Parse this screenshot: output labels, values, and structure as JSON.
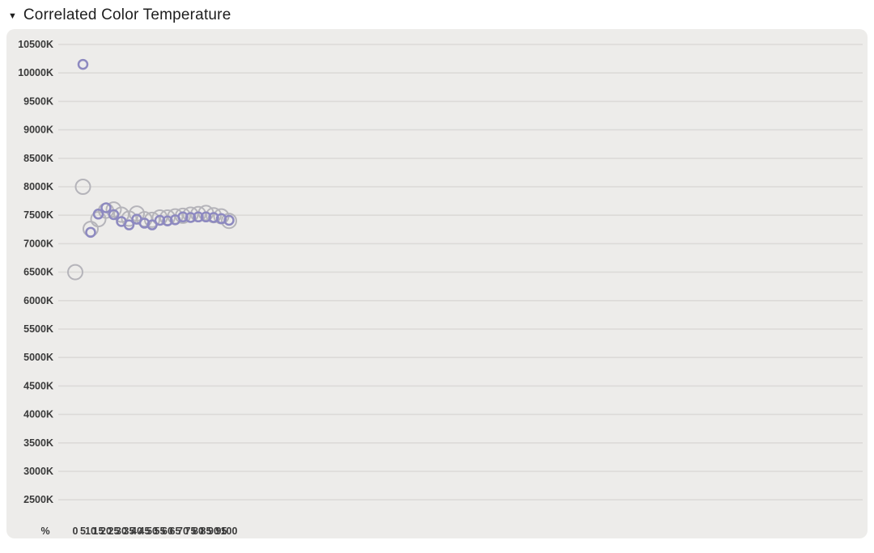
{
  "header": {
    "collapse_icon": "▼",
    "title": "Correlated Color Temperature"
  },
  "chart_data": {
    "type": "scatter",
    "title": "Correlated Color Temperature",
    "xlabel": "%",
    "ylabel": "",
    "grid": true,
    "legend": "none",
    "x": [
      0,
      5,
      10,
      15,
      20,
      25,
      30,
      35,
      40,
      45,
      50,
      55,
      60,
      65,
      70,
      75,
      80,
      85,
      90,
      95,
      100
    ],
    "x_tick_labels": [
      "0",
      "5",
      "10",
      "15",
      "20",
      "25",
      "30",
      "35",
      "40",
      "45",
      "50",
      "55",
      "60",
      "65",
      "70",
      "75",
      "80",
      "85",
      "90",
      "95",
      "100"
    ],
    "x_unit_label": "%",
    "ylim": [
      2500,
      10500
    ],
    "y_ticks": [
      2500,
      3000,
      3500,
      4000,
      4500,
      5000,
      5500,
      6000,
      6500,
      7000,
      7500,
      8000,
      8500,
      9000,
      9500,
      10000,
      10500
    ],
    "y_tick_labels": [
      "2500K",
      "3000K",
      "3500K",
      "4000K",
      "4500K",
      "5000K",
      "5500K",
      "6000K",
      "6500K",
      "7000K",
      "7500K",
      "8000K",
      "8500K",
      "9000K",
      "9500K",
      "10000K",
      "10500K"
    ],
    "series": [
      {
        "name": "cct-large-gray-circles",
        "color": "#b5b4ba",
        "marker_radius": 9,
        "marker_stroke_width": 2,
        "values": [
          6500,
          8000,
          7260,
          7430,
          7580,
          7600,
          7510,
          7440,
          7530,
          7430,
          7420,
          7460,
          7460,
          7480,
          7490,
          7510,
          7520,
          7540,
          7500,
          7480,
          7400
        ]
      },
      {
        "name": "cct-small-purple-circles",
        "color": "#8d89c0",
        "marker_radius": 5.5,
        "marker_stroke_width": 2.5,
        "values": [
          null,
          10150,
          7200,
          7520,
          7630,
          7510,
          7390,
          7330,
          7430,
          7360,
          7330,
          7410,
          7400,
          7420,
          7470,
          7460,
          7470,
          7470,
          7460,
          7440,
          7410
        ]
      }
    ],
    "colors": {
      "panel_background": "#edecea",
      "gridline": "#dcdad8",
      "tick_text": "#3a3a3a"
    }
  }
}
